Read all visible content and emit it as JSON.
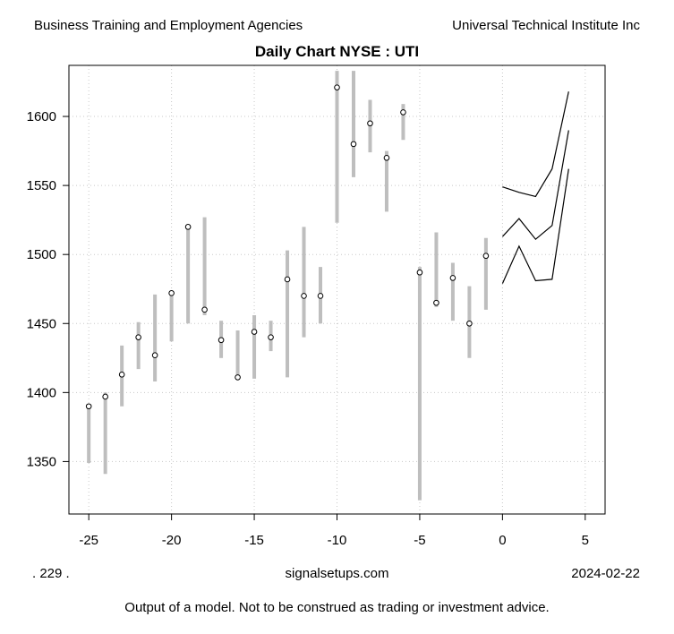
{
  "header": {
    "left": "Business Training and Employment Agencies",
    "right": "Universal Technical Institute Inc"
  },
  "footer": {
    "left": ". 229 .",
    "center": "signalsetups.com",
    "right": "2024-02-22",
    "disclaimer": "Output of a model.  Not to be construed as trading or investment advice."
  },
  "chart_data": {
    "type": "line",
    "title": "Daily Chart NYSE : UTI",
    "xlabel": "",
    "ylabel": "",
    "xlim": [
      -26.2,
      6.2
    ],
    "ylim": [
      1312,
      1637
    ],
    "x_ticks": [
      -25,
      -20,
      -15,
      -10,
      -5,
      0,
      5
    ],
    "y_ticks": [
      1350,
      1400,
      1450,
      1500,
      1550,
      1600
    ],
    "grid": true,
    "colors": {
      "range_bar": "#bebebe",
      "forecast_line": "#000000",
      "grid": "#c8c8c8"
    },
    "daily_ranges": [
      {
        "x": -25,
        "low": 1349,
        "high": 1391,
        "close": 1390
      },
      {
        "x": -24,
        "low": 1341,
        "high": 1400,
        "close": 1397
      },
      {
        "x": -23,
        "low": 1390,
        "high": 1434,
        "close": 1413
      },
      {
        "x": -22,
        "low": 1417,
        "high": 1451,
        "close": 1440
      },
      {
        "x": -21,
        "low": 1408,
        "high": 1471,
        "close": 1427
      },
      {
        "x": -20,
        "low": 1437,
        "high": 1472,
        "close": 1472
      },
      {
        "x": -19,
        "low": 1450,
        "high": 1521,
        "close": 1520
      },
      {
        "x": -18,
        "low": 1456,
        "high": 1527,
        "close": 1460
      },
      {
        "x": -17,
        "low": 1425,
        "high": 1452,
        "close": 1438
      },
      {
        "x": -16,
        "low": 1410,
        "high": 1445,
        "close": 1411
      },
      {
        "x": -15,
        "low": 1410,
        "high": 1456,
        "close": 1444
      },
      {
        "x": -14,
        "low": 1430,
        "high": 1452,
        "close": 1440
      },
      {
        "x": -13,
        "low": 1411,
        "high": 1503,
        "close": 1482
      },
      {
        "x": -12,
        "low": 1440,
        "high": 1520,
        "close": 1470
      },
      {
        "x": -11,
        "low": 1450,
        "high": 1491,
        "close": 1470
      },
      {
        "x": -10,
        "low": 1523,
        "high": 1633,
        "close": 1621
      },
      {
        "x": -9,
        "low": 1556,
        "high": 1633,
        "close": 1580
      },
      {
        "x": -8,
        "low": 1574,
        "high": 1612,
        "close": 1595
      },
      {
        "x": -7,
        "low": 1531,
        "high": 1575,
        "close": 1570
      },
      {
        "x": -6,
        "low": 1583,
        "high": 1609,
        "close": 1603
      },
      {
        "x": -5,
        "low": 1322,
        "high": 1491,
        "close": 1487
      },
      {
        "x": -4,
        "low": 1462,
        "high": 1516,
        "close": 1465
      },
      {
        "x": -3,
        "low": 1452,
        "high": 1494,
        "close": 1483
      },
      {
        "x": -2,
        "low": 1425,
        "high": 1477,
        "close": 1450
      },
      {
        "x": -1,
        "low": 1460,
        "high": 1512,
        "close": 1499
      }
    ],
    "forecast": {
      "x": [
        0,
        1,
        2,
        3,
        4
      ],
      "upper": [
        1549,
        1545,
        1542,
        1562,
        1618
      ],
      "middle": [
        1513,
        1526,
        1511,
        1521,
        1590
      ],
      "lower": [
        1479,
        1506,
        1481,
        1482,
        1562
      ]
    }
  }
}
